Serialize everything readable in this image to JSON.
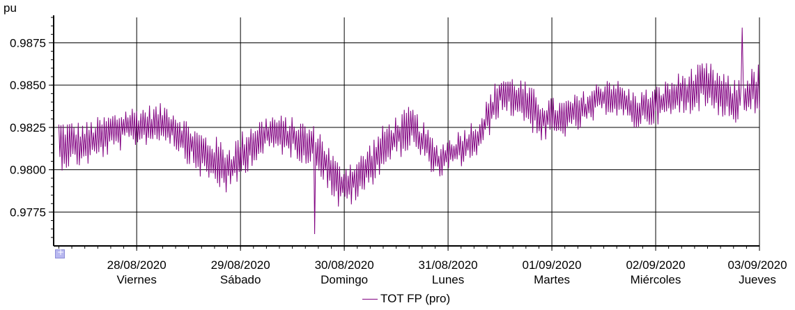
{
  "chart_data": {
    "type": "line",
    "y_unit": "pu",
    "y_ticks": [
      0.9775,
      0.98,
      0.9825,
      0.985,
      0.9875
    ],
    "y_tick_labels": [
      "0.9775",
      "0.9800",
      "0.9825",
      "0.9850",
      "0.9875"
    ],
    "ylim": [
      0.9755,
      0.989
    ],
    "x_ticks": [
      {
        "day": 1,
        "date": "28/08/2020",
        "weekday": "Viernes"
      },
      {
        "day": 2,
        "date": "29/08/2020",
        "weekday": "Sábado"
      },
      {
        "day": 3,
        "date": "30/08/2020",
        "weekday": "Domingo"
      },
      {
        "day": 4,
        "date": "31/08/2020",
        "weekday": "Lunes"
      },
      {
        "day": 5,
        "date": "01/09/2020",
        "weekday": "Martes"
      },
      {
        "day": 6,
        "date": "02/09/2020",
        "weekday": "Miércoles"
      },
      {
        "day": 7,
        "date": "03/09/2020",
        "weekday": "Jueves"
      }
    ],
    "x_range_days": [
      0.2,
      7.0
    ],
    "grid": true,
    "legend_position": "bottom-center",
    "series": [
      {
        "name": "TOT FP (pro)",
        "color": "#800080",
        "sample_interval_days": 0.0104,
        "trend_knots_day": [
          0.2,
          0.5,
          0.9,
          1.3,
          1.6,
          1.9,
          2.1,
          2.3,
          2.55,
          2.75,
          2.95,
          3.15,
          3.4,
          3.65,
          3.9,
          4.1,
          4.3,
          4.5,
          4.7,
          4.9,
          5.1,
          5.3,
          5.55,
          5.8,
          6.0,
          6.25,
          6.5,
          6.75,
          7.0
        ],
        "trend_knots_value": [
          0.9815,
          0.9815,
          0.9825,
          0.9828,
          0.981,
          0.98,
          0.9815,
          0.9822,
          0.9818,
          0.9812,
          0.979,
          0.9795,
          0.9815,
          0.9825,
          0.9805,
          0.9812,
          0.982,
          0.9845,
          0.9842,
          0.983,
          0.983,
          0.9835,
          0.9845,
          0.9835,
          0.9838,
          0.9845,
          0.985,
          0.984,
          0.9848
        ],
        "amplitude_knots_value": [
          0.0018,
          0.0015,
          0.0014,
          0.0013,
          0.0016,
          0.0018,
          0.0015,
          0.0013,
          0.0014,
          0.0015,
          0.0016,
          0.0016,
          0.0015,
          0.0015,
          0.0012,
          0.0013,
          0.0014,
          0.0014,
          0.0014,
          0.0016,
          0.0013,
          0.0013,
          0.0013,
          0.0013,
          0.0013,
          0.0015,
          0.0016,
          0.0015,
          0.0017
        ],
        "max": {
          "day": 6.83,
          "value": 0.9884
        },
        "min": {
          "day": 2.72,
          "value": 0.9762
        }
      }
    ]
  }
}
